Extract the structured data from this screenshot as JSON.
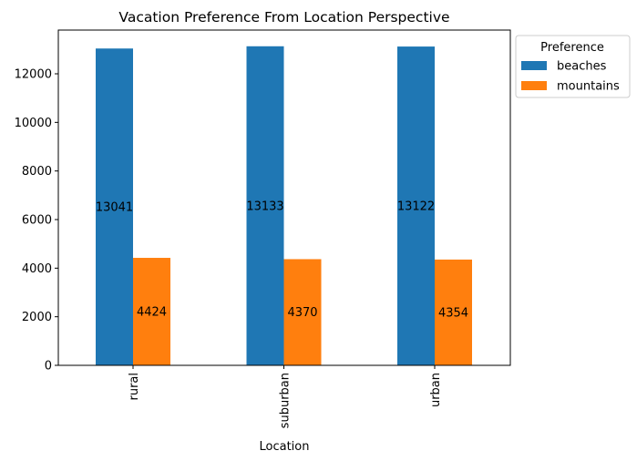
{
  "chart_data": {
    "type": "bar",
    "title": "Vacation Preference From Location Perspective",
    "xlabel": "Location",
    "ylabel": "",
    "categories": [
      "rural",
      "suburban",
      "urban"
    ],
    "series": [
      {
        "name": "beaches",
        "values": [
          13041,
          13133,
          13122
        ],
        "labels": [
          "13041",
          "13133",
          "13122"
        ],
        "color": "#1f77b4"
      },
      {
        "name": "mountains",
        "values": [
          4424,
          4370,
          4354
        ],
        "labels": [
          "4424",
          "4370",
          "4354"
        ],
        "color": "#ff7f0e"
      }
    ],
    "ylim": [
      0,
      13800
    ],
    "yticks": [
      0,
      2000,
      4000,
      6000,
      8000,
      10000,
      12000
    ],
    "ytick_labels": [
      "0",
      "2000",
      "4000",
      "6000",
      "8000",
      "10000",
      "12000"
    ],
    "legend": {
      "title": "Preference",
      "placement": "outside-top-right"
    },
    "grid": false
  }
}
